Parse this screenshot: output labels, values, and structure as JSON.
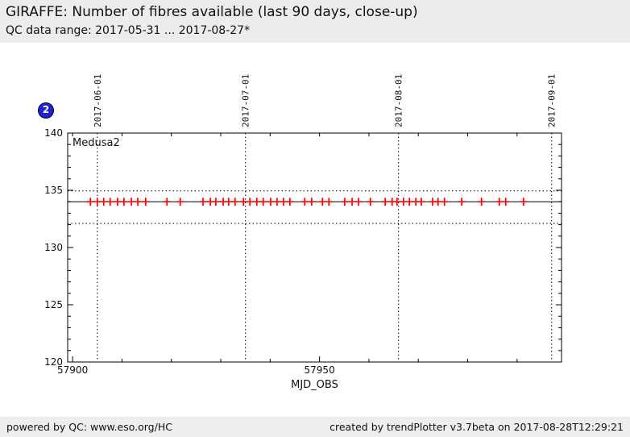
{
  "header": {
    "title": "GIRAFFE: Number of fibres available (last 90 days, close-up)",
    "subtitle": "QC data range: 2017-05-31 ... 2017-08-27*"
  },
  "badge": {
    "label": "2"
  },
  "chart_data": {
    "type": "scatter",
    "series_label": "Medusa2",
    "xlabel": "MJD_OBS",
    "xlim": [
      57899,
      57999
    ],
    "ylim": [
      120,
      140
    ],
    "y_major_ticks": [
      120,
      125,
      130,
      135,
      140
    ],
    "y_minor_step": 1,
    "x_labeled_ticks": [
      57900,
      57950
    ],
    "x_minor_step": 10,
    "month_lines": [
      {
        "mjd": 57905,
        "label": "2017-06-01"
      },
      {
        "mjd": 57935,
        "label": "2017-07-01"
      },
      {
        "mjd": 57966,
        "label": "2017-08-01"
      },
      {
        "mjd": 57997,
        "label": "2017-09-01"
      }
    ],
    "center_line_value": 134,
    "upper_dotted_value": 134.95,
    "lower_dotted_value": 132.1,
    "marker": {
      "shape": "plus",
      "color": "#ff0000"
    },
    "points_value": 134,
    "points_mjd": [
      57903.6,
      57905.0,
      57906.3,
      57907.6,
      57909.1,
      57910.4,
      57911.9,
      57913.2,
      57914.8,
      57919.1,
      57921.8,
      57926.4,
      57927.9,
      57929.0,
      57930.5,
      57931.6,
      57932.9,
      57934.6,
      57935.9,
      57937.3,
      57938.6,
      57940.1,
      57941.4,
      57942.7,
      57944.0,
      57947.0,
      57948.4,
      57950.6,
      57951.9,
      57955.1,
      57956.6,
      57957.9,
      57960.3,
      57963.3,
      57964.7,
      57965.7,
      57967.0,
      57968.2,
      57969.5,
      57970.6,
      57972.9,
      57974.0,
      57975.3,
      57978.8,
      57982.8,
      57986.4,
      57987.7,
      57991.3
    ]
  },
  "footer": {
    "left": "powered by QC: www.eso.org/HC",
    "right": "created by trendPlotter v3.7beta on 2017-08-28T12:29:21"
  },
  "colors": {
    "marker": "#ff0000",
    "badge_blue": "#2222cc",
    "header_bg": "#ececec",
    "footer_bg": "#eeeeee",
    "axis": "#000000"
  }
}
